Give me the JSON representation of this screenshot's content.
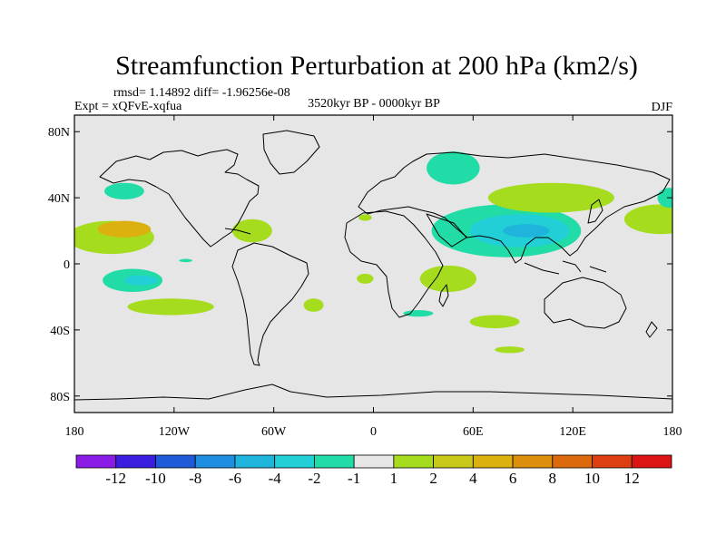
{
  "chart_data": {
    "type": "contour-map",
    "title": "Streamfunction Perturbation at 200 hPa (km2/s)",
    "stats_text": "rmsd= 1.14892  diff= -1.96256e-08",
    "experiment_text": "Expt = xQFvE-xqfua",
    "period_text": "3520kyr BP - 0000kyr BP",
    "season_text": "DJF",
    "lon_range": [
      -180,
      180
    ],
    "lat_range": [
      -90,
      90
    ],
    "x_ticks": [
      {
        "value": -180,
        "label": "180"
      },
      {
        "value": -120,
        "label": "120W"
      },
      {
        "value": -60,
        "label": "60W"
      },
      {
        "value": 0,
        "label": "0"
      },
      {
        "value": 60,
        "label": "60E"
      },
      {
        "value": 120,
        "label": "120E"
      },
      {
        "value": 180,
        "label": "180"
      }
    ],
    "y_ticks": [
      {
        "value": 80,
        "label": "80N"
      },
      {
        "value": 40,
        "label": "40N"
      },
      {
        "value": 0,
        "label": "0"
      },
      {
        "value": -40,
        "label": "40S"
      },
      {
        "value": -80,
        "label": "80S"
      }
    ],
    "colorbar": {
      "colors": [
        "#8a1ce6",
        "#3a1ee0",
        "#1f5bd8",
        "#1e8fe0",
        "#1eb4dc",
        "#22cfd6",
        "#22dca8",
        "#e6e6e6",
        "#a6dc1e",
        "#c8c818",
        "#dcb00f",
        "#dc8f0c",
        "#dc6a0c",
        "#dc4010",
        "#dc1414"
      ],
      "labels": [
        "-12",
        "-10",
        "-8",
        "-6",
        "-4",
        "-2",
        "-1",
        "1",
        "2",
        "4",
        "6",
        "8",
        "10",
        "12"
      ]
    },
    "anomalies": [
      {
        "lon": -158,
        "lat": 16,
        "rx": 26,
        "ry": 10,
        "level": 1
      },
      {
        "lon": -150,
        "lat": 21,
        "rx": 16,
        "ry": 5,
        "level": 3
      },
      {
        "lon": -150,
        "lat": 44,
        "rx": 12,
        "ry": 5,
        "level": -1
      },
      {
        "lon": -145,
        "lat": -10,
        "rx": 18,
        "ry": 7,
        "level": -1
      },
      {
        "lon": -140,
        "lat": -10,
        "rx": 10,
        "ry": 3,
        "level": -2
      },
      {
        "lon": -122,
        "lat": -26,
        "rx": 26,
        "ry": 5,
        "level": 1
      },
      {
        "lon": -113,
        "lat": 2,
        "rx": 4,
        "ry": 1,
        "level": -1
      },
      {
        "lon": -73,
        "lat": 20,
        "rx": 12,
        "ry": 7,
        "level": 1
      },
      {
        "lon": -36,
        "lat": -25,
        "rx": 6,
        "ry": 4,
        "level": 1
      },
      {
        "lon": -5,
        "lat": 28,
        "rx": 4,
        "ry": 2,
        "level": 1
      },
      {
        "lon": -5,
        "lat": -9,
        "rx": 5,
        "ry": 3,
        "level": 1
      },
      {
        "lon": 27,
        "lat": -30,
        "rx": 9,
        "ry": 2,
        "level": -1
      },
      {
        "lon": 48,
        "lat": 58,
        "rx": 16,
        "ry": 10,
        "level": -1
      },
      {
        "lon": 80,
        "lat": 20,
        "rx": 45,
        "ry": 16,
        "level": -1
      },
      {
        "lon": 88,
        "lat": 20,
        "rx": 30,
        "ry": 10,
        "level": -2
      },
      {
        "lon": 92,
        "lat": 20,
        "rx": 14,
        "ry": 4,
        "level": -3
      },
      {
        "lon": 45,
        "lat": -9,
        "rx": 17,
        "ry": 8,
        "level": 1
      },
      {
        "lon": 107,
        "lat": 40,
        "rx": 38,
        "ry": 9,
        "level": 1
      },
      {
        "lon": 173,
        "lat": 27,
        "rx": 22,
        "ry": 9,
        "level": 1
      },
      {
        "lon": 178,
        "lat": 40,
        "rx": 7,
        "ry": 6,
        "level": -1
      },
      {
        "lon": 73,
        "lat": -35,
        "rx": 15,
        "ry": 4,
        "level": 1
      },
      {
        "lon": 82,
        "lat": -52,
        "rx": 9,
        "ry": 2,
        "level": 1
      }
    ]
  }
}
